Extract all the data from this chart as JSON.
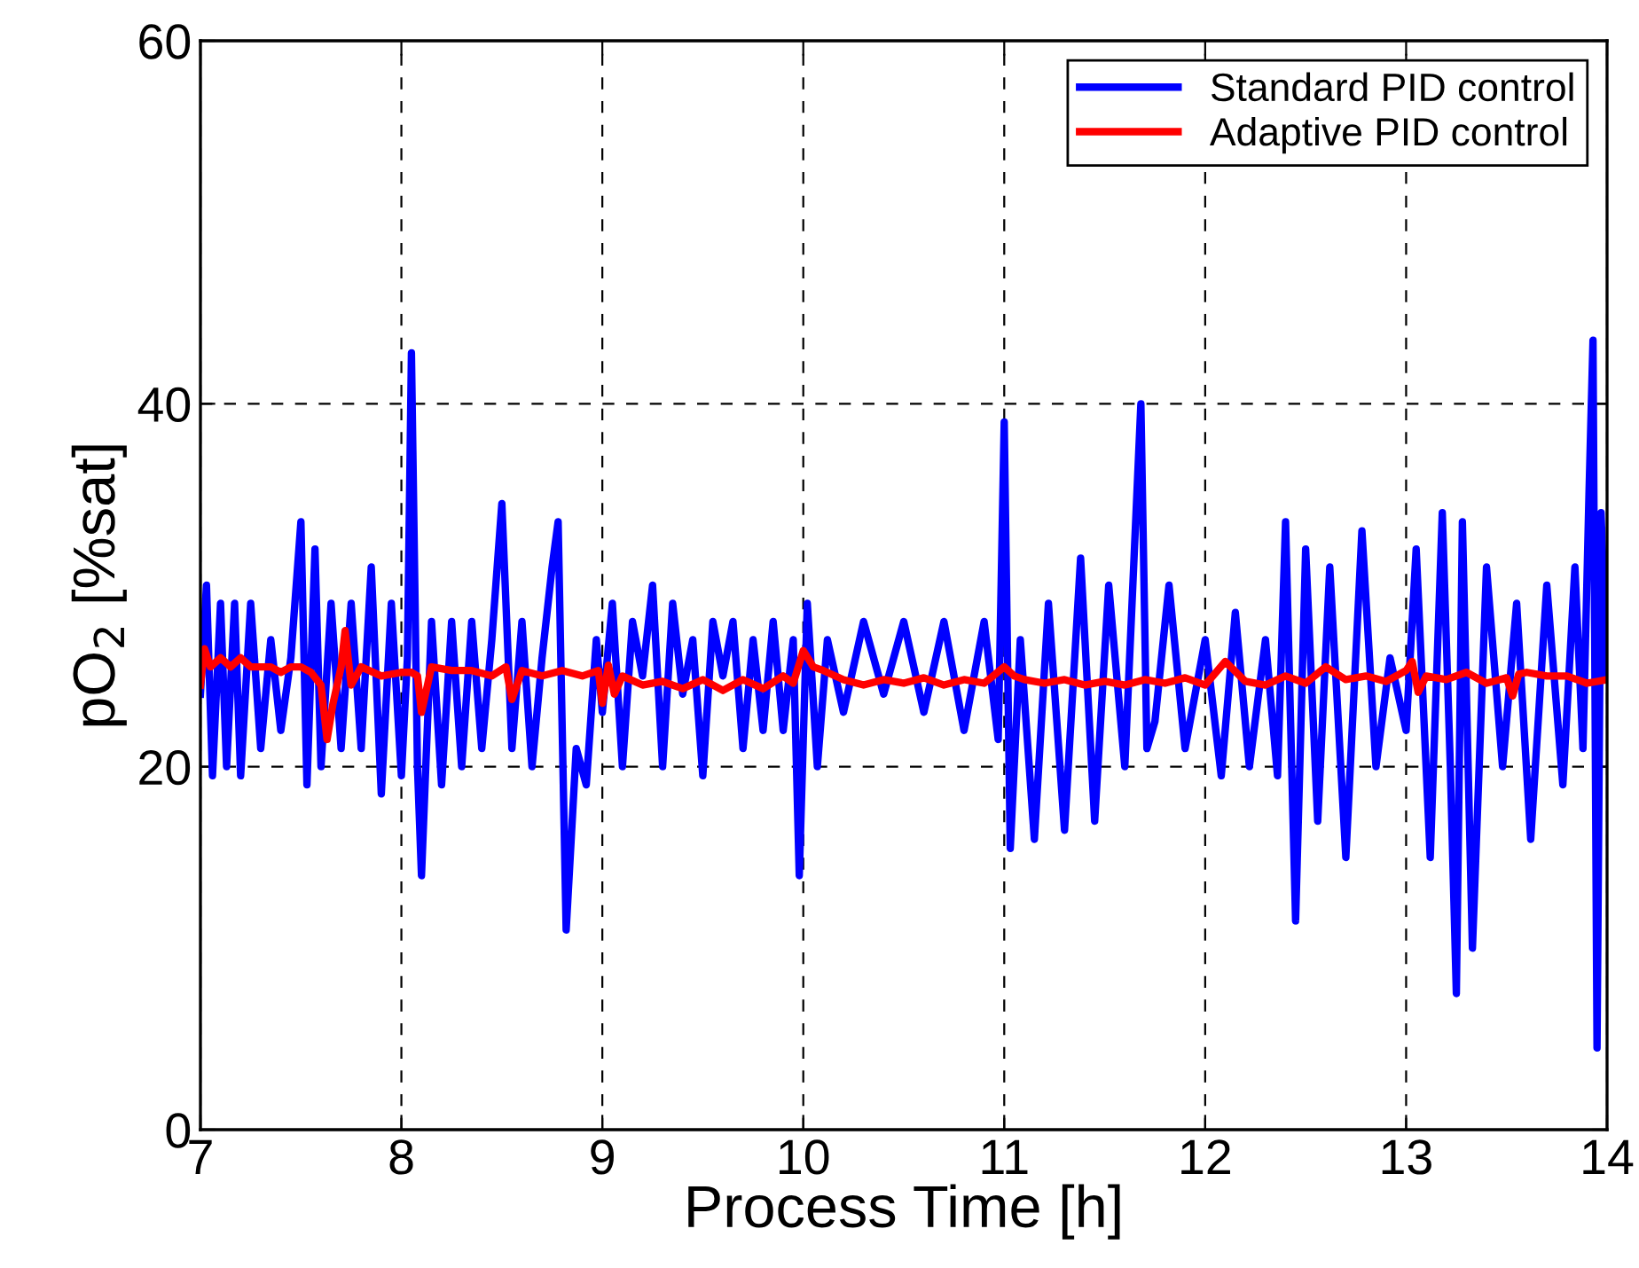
{
  "chart_data": {
    "type": "line",
    "xlabel": "Process Time [h]",
    "ylabel": "pO$_{2}$ [%sat]",
    "xlim": [
      7,
      14
    ],
    "ylim": [
      0,
      60
    ],
    "xticks": [
      7,
      8,
      9,
      10,
      11,
      12,
      13,
      14
    ],
    "yticks": [
      0,
      20,
      40,
      60
    ],
    "grid": true,
    "legend": "top right",
    "marker": "none",
    "line_style": "solid",
    "series": [
      {
        "name": "Standard PID control",
        "color": "#0000ff",
        "x": [
          7.0,
          7.03,
          7.06,
          7.1,
          7.13,
          7.17,
          7.2,
          7.25,
          7.3,
          7.35,
          7.4,
          7.45,
          7.5,
          7.53,
          7.57,
          7.6,
          7.65,
          7.7,
          7.75,
          7.8,
          7.85,
          7.9,
          7.95,
          8.0,
          8.03,
          8.05,
          8.08,
          8.1,
          8.15,
          8.2,
          8.25,
          8.3,
          8.35,
          8.4,
          8.45,
          8.5,
          8.55,
          8.6,
          8.65,
          8.7,
          8.75,
          8.78,
          8.82,
          8.87,
          8.92,
          8.97,
          9.0,
          9.05,
          9.1,
          9.15,
          9.2,
          9.25,
          9.3,
          9.35,
          9.4,
          9.45,
          9.5,
          9.55,
          9.6,
          9.65,
          9.7,
          9.75,
          9.8,
          9.85,
          9.9,
          9.95,
          9.98,
          10.02,
          10.07,
          10.12,
          10.2,
          10.3,
          10.4,
          10.5,
          10.6,
          10.7,
          10.8,
          10.9,
          10.97,
          11.0,
          11.03,
          11.08,
          11.15,
          11.22,
          11.3,
          11.38,
          11.45,
          11.52,
          11.6,
          11.68,
          11.71,
          11.75,
          11.82,
          11.9,
          12.0,
          12.08,
          12.15,
          12.22,
          12.3,
          12.36,
          12.4,
          12.45,
          12.5,
          12.56,
          12.62,
          12.7,
          12.78,
          12.85,
          12.92,
          13.0,
          13.05,
          13.12,
          13.18,
          13.22,
          13.25,
          13.28,
          13.33,
          13.4,
          13.48,
          13.55,
          13.62,
          13.7,
          13.78,
          13.84,
          13.88,
          13.91,
          13.93,
          13.95,
          13.97,
          14.0
        ],
        "values": [
          24,
          30,
          19.5,
          29,
          20,
          29,
          19.5,
          29,
          21,
          27,
          22,
          26,
          33.5,
          19,
          32,
          20,
          29,
          21,
          29,
          21,
          31,
          18.5,
          29,
          19.5,
          26,
          42.8,
          20,
          14,
          28,
          19,
          28,
          20,
          28,
          21,
          27,
          34.5,
          21,
          28,
          20,
          26,
          31,
          33.5,
          11,
          21,
          19,
          27,
          23,
          29,
          20,
          28,
          25,
          30,
          20,
          29,
          24,
          27,
          19.5,
          28,
          25,
          28,
          21,
          27,
          22,
          28,
          22,
          27,
          14,
          29,
          20,
          27,
          23,
          28,
          24,
          28,
          23,
          28,
          22,
          28,
          21.5,
          39,
          15.5,
          27,
          16,
          29,
          16.5,
          31.5,
          17,
          30,
          20,
          40,
          21,
          22.5,
          30,
          21,
          27,
          19.5,
          28.5,
          20,
          27,
          19.5,
          33.5,
          11.5,
          32,
          17,
          31,
          15,
          33,
          20,
          26,
          22,
          32,
          15,
          34,
          20,
          7.5,
          33.5,
          10,
          31,
          20,
          29,
          16,
          30,
          19,
          31,
          21,
          35,
          43.5,
          4.5,
          34,
          25
        ]
      },
      {
        "name": "Adaptive PID control",
        "color": "#ff0000",
        "x": [
          7.0,
          7.02,
          7.05,
          7.1,
          7.15,
          7.2,
          7.25,
          7.3,
          7.35,
          7.4,
          7.45,
          7.5,
          7.55,
          7.6,
          7.63,
          7.66,
          7.7,
          7.72,
          7.75,
          7.8,
          7.9,
          8.0,
          8.05,
          8.08,
          8.1,
          8.15,
          8.25,
          8.35,
          8.45,
          8.52,
          8.55,
          8.6,
          8.7,
          8.8,
          8.9,
          8.98,
          9.0,
          9.03,
          9.06,
          9.1,
          9.2,
          9.3,
          9.4,
          9.5,
          9.6,
          9.7,
          9.8,
          9.9,
          9.95,
          10.0,
          10.05,
          10.1,
          10.2,
          10.3,
          10.4,
          10.5,
          10.6,
          10.7,
          10.8,
          10.9,
          11.0,
          11.05,
          11.1,
          11.2,
          11.3,
          11.4,
          11.5,
          11.6,
          11.7,
          11.8,
          11.9,
          12.0,
          12.1,
          12.2,
          12.3,
          12.4,
          12.5,
          12.6,
          12.7,
          12.8,
          12.9,
          13.0,
          13.03,
          13.06,
          13.1,
          13.2,
          13.3,
          13.4,
          13.5,
          13.53,
          13.56,
          13.6,
          13.7,
          13.8,
          13.9,
          14.0
        ],
        "values": [
          24.5,
          26.5,
          25.5,
          26,
          25.5,
          26,
          25.5,
          25.5,
          25.5,
          25.2,
          25.5,
          25.5,
          25.2,
          24.5,
          21.5,
          23.5,
          25.5,
          27.5,
          24.5,
          25.5,
          25,
          25.2,
          25.2,
          25,
          23,
          25.5,
          25.3,
          25.3,
          25,
          25.5,
          23.7,
          25.3,
          25,
          25.3,
          25,
          25.3,
          23.5,
          25.6,
          24,
          25,
          24.5,
          24.7,
          24.3,
          24.8,
          24.2,
          24.8,
          24.3,
          25,
          24.6,
          26.4,
          25.5,
          25.3,
          24.8,
          24.5,
          24.8,
          24.6,
          24.9,
          24.5,
          24.8,
          24.6,
          25.5,
          25,
          24.8,
          24.6,
          24.8,
          24.5,
          24.7,
          24.5,
          24.8,
          24.6,
          24.9,
          24.5,
          25.8,
          24.7,
          24.5,
          25,
          24.6,
          25.5,
          24.8,
          25,
          24.7,
          25.3,
          25.8,
          24.1,
          25,
          24.8,
          25.2,
          24.6,
          24.9,
          23.9,
          25.1,
          25.2,
          25,
          25,
          24.6,
          24.8
        ]
      }
    ]
  }
}
